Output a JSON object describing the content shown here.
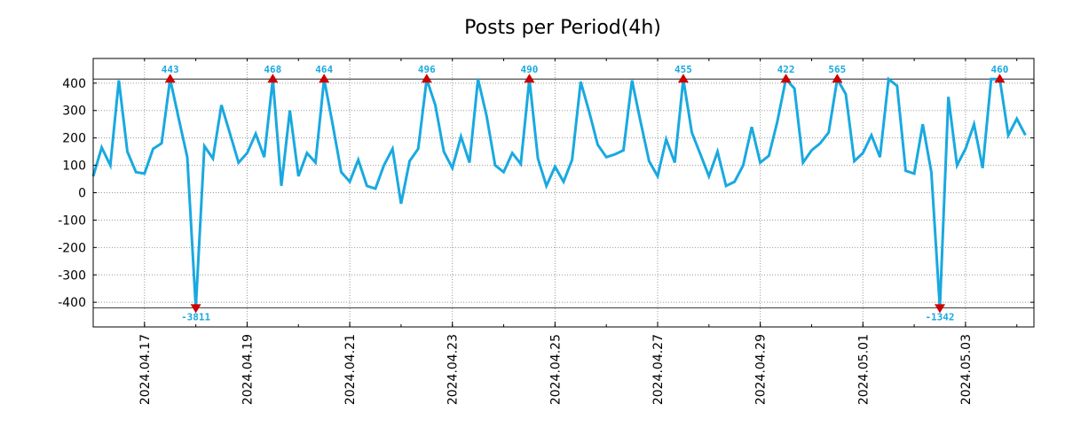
{
  "chart_data": {
    "type": "line",
    "title": "Posts per Period(4h)",
    "xlabel": "",
    "ylabel": "",
    "ylim": [
      -490,
      490
    ],
    "xlim": [
      0,
      110
    ],
    "grid": true,
    "line_color": "#19a9e0",
    "marker_color": "#cc0000",
    "yticks": [
      -400,
      -300,
      -200,
      -100,
      0,
      100,
      200,
      300,
      400
    ],
    "xticks": [
      {
        "x": 6,
        "label": "2024.04.17"
      },
      {
        "x": 18,
        "label": "2024.04.19"
      },
      {
        "x": 30,
        "label": "2024.04.21"
      },
      {
        "x": 42,
        "label": "2024.04.23"
      },
      {
        "x": 54,
        "label": "2024.04.25"
      },
      {
        "x": 66,
        "label": "2024.04.27"
      },
      {
        "x": 78,
        "label": "2024.04.29"
      },
      {
        "x": 90,
        "label": "2024.05.01"
      },
      {
        "x": 102,
        "label": "2024.05.03"
      }
    ],
    "clip_upper": 415,
    "clip_lower": -420,
    "series": [
      {
        "name": "posts",
        "values": [
          60,
          165,
          100,
          410,
          150,
          75,
          70,
          160,
          180,
          415,
          270,
          130,
          -420,
          170,
          125,
          320,
          215,
          110,
          145,
          215,
          130,
          415,
          25,
          300,
          60,
          145,
          110,
          415,
          250,
          75,
          40,
          120,
          25,
          15,
          100,
          160,
          -40,
          115,
          160,
          415,
          320,
          150,
          90,
          205,
          110,
          415,
          280,
          100,
          75,
          145,
          105,
          415,
          125,
          25,
          95,
          40,
          120,
          405,
          295,
          175,
          130,
          140,
          155,
          410,
          260,
          115,
          60,
          195,
          110,
          415,
          220,
          140,
          60,
          150,
          25,
          40,
          100,
          240,
          110,
          135,
          260,
          415,
          380,
          110,
          155,
          180,
          220,
          415,
          360,
          115,
          145,
          210,
          130,
          415,
          390,
          80,
          70,
          250,
          75,
          -420,
          350,
          100,
          160,
          250,
          90,
          415,
          415,
          210,
          270,
          210
        ]
      }
    ],
    "annotations": [
      {
        "x": 9,
        "y": 415,
        "label": "443",
        "kind": "max"
      },
      {
        "x": 12,
        "y": -420,
        "label": "-3811",
        "kind": "min"
      },
      {
        "x": 21,
        "y": 415,
        "label": "468",
        "kind": "max"
      },
      {
        "x": 27,
        "y": 415,
        "label": "464",
        "kind": "max"
      },
      {
        "x": 39,
        "y": 415,
        "label": "496",
        "kind": "max"
      },
      {
        "x": 51,
        "y": 415,
        "label": "490",
        "kind": "max"
      },
      {
        "x": 69,
        "y": 415,
        "label": "455",
        "kind": "max"
      },
      {
        "x": 81,
        "y": 415,
        "label": "422",
        "kind": "max"
      },
      {
        "x": 87,
        "y": 415,
        "label": "565",
        "kind": "max"
      },
      {
        "x": 99,
        "y": -420,
        "label": "-1342",
        "kind": "min"
      },
      {
        "x": 106,
        "y": 415,
        "label": "460",
        "kind": "max"
      }
    ]
  }
}
